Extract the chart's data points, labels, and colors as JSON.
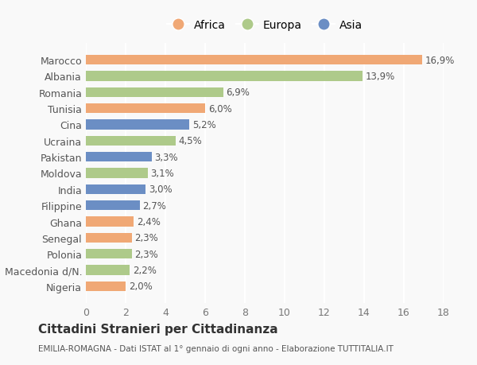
{
  "categories": [
    "Marocco",
    "Albania",
    "Romania",
    "Tunisia",
    "Cina",
    "Ucraina",
    "Pakistan",
    "Moldova",
    "India",
    "Filippine",
    "Ghana",
    "Senegal",
    "Polonia",
    "Macedonia d/N.",
    "Nigeria"
  ],
  "values": [
    16.9,
    13.9,
    6.9,
    6.0,
    5.2,
    4.5,
    3.3,
    3.1,
    3.0,
    2.7,
    2.4,
    2.3,
    2.3,
    2.2,
    2.0
  ],
  "labels": [
    "16,9%",
    "13,9%",
    "6,9%",
    "6,0%",
    "5,2%",
    "4,5%",
    "3,3%",
    "3,1%",
    "3,0%",
    "2,7%",
    "2,4%",
    "2,3%",
    "2,3%",
    "2,2%",
    "2,0%"
  ],
  "continent": [
    "Africa",
    "Europa",
    "Europa",
    "Africa",
    "Asia",
    "Europa",
    "Asia",
    "Europa",
    "Asia",
    "Asia",
    "Africa",
    "Africa",
    "Europa",
    "Europa",
    "Africa"
  ],
  "colors": {
    "Africa": "#F0A875",
    "Europa": "#AECA8A",
    "Asia": "#6B8EC4"
  },
  "xlim": [
    0,
    18
  ],
  "xticks": [
    0,
    2,
    4,
    6,
    8,
    10,
    12,
    14,
    16,
    18
  ],
  "title": "Cittadini Stranieri per Cittadinanza",
  "subtitle": "EMILIA-ROMAGNA - Dati ISTAT al 1° gennaio di ogni anno - Elaborazione TUTTITALIA.IT",
  "background_color": "#f9f9f9",
  "grid_color": "#ffffff"
}
